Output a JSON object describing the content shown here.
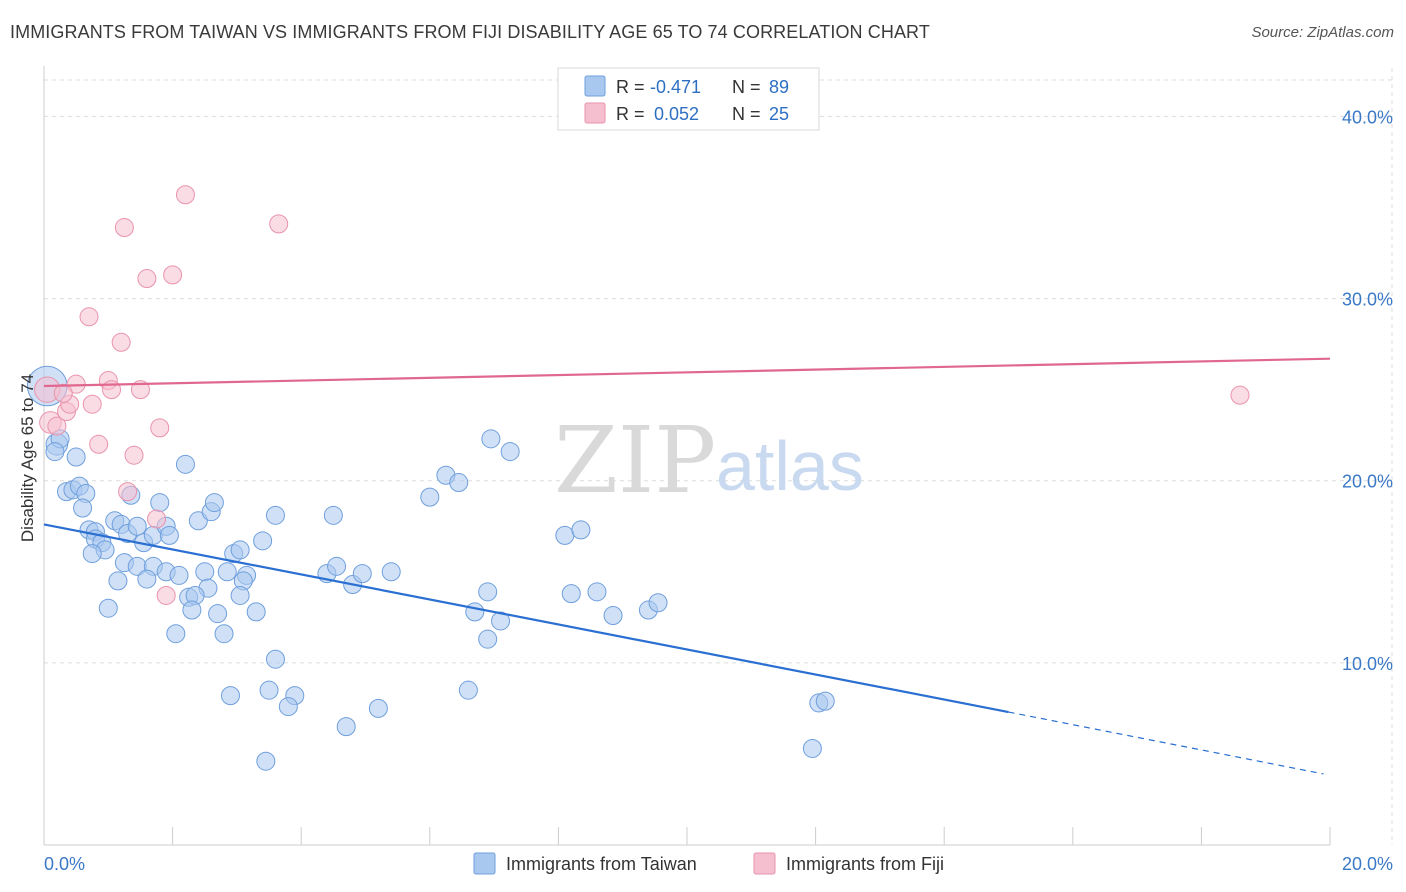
{
  "title": "IMMIGRANTS FROM TAIWAN VS IMMIGRANTS FROM FIJI DISABILITY AGE 65 TO 74 CORRELATION CHART",
  "source": "Source: ZipAtlas.com",
  "watermark": {
    "zip": "ZIP",
    "atlas": "atlas"
  },
  "colors": {
    "taiwan_fill": "#a9c8f0",
    "taiwan_stroke": "#6f9fdc",
    "taiwan_line": "#2a6fd1",
    "fiji_fill": "#f6bfd0",
    "fiji_stroke": "#e993ad",
    "fiji_line": "#e0688f",
    "grid": "#dcdcdc",
    "tick_label": "#3b78c6"
  },
  "legend_top": {
    "rows": [
      {
        "r_label": "R =",
        "r_value": "-0.471",
        "n_label": "N =",
        "n_value": "89",
        "color": "taiwan"
      },
      {
        "r_label": "R =",
        "r_value": "0.052",
        "n_label": "N =",
        "n_value": "25",
        "color": "fiji"
      }
    ]
  },
  "chart_data": {
    "type": "scatter",
    "title": "IMMIGRANTS FROM TAIWAN VS IMMIGRANTS FROM FIJI DISABILITY AGE 65 TO 74 CORRELATION CHART",
    "xlabel": "",
    "ylabel": "Disability Age 65 to 74",
    "xlim": [
      0,
      20
    ],
    "ylim": [
      0,
      42
    ],
    "x_tick_labels": [
      "0.0%",
      "20.0%"
    ],
    "y_ticks": [
      10,
      20,
      30,
      40
    ],
    "y_tick_labels": [
      "10.0%",
      "20.0%",
      "30.0%",
      "40.0%"
    ],
    "grid": true,
    "legend": "bottom-center",
    "series": [
      {
        "name": "Immigrants from Taiwan",
        "color": "taiwan",
        "points": [
          [
            0.05,
            25.2,
            2.2
          ],
          [
            0.2,
            22.0,
            1.2
          ],
          [
            0.25,
            22.3,
            1.0
          ],
          [
            0.17,
            21.6,
            1.0
          ],
          [
            0.35,
            19.4,
            1.0
          ],
          [
            0.45,
            19.5,
            1.0
          ],
          [
            0.55,
            19.7,
            1.0
          ],
          [
            0.65,
            19.3,
            1.0
          ],
          [
            0.6,
            18.5,
            1.0
          ],
          [
            0.7,
            17.3,
            1.0
          ],
          [
            0.8,
            17.2,
            1.0
          ],
          [
            0.8,
            16.8,
            1.0
          ],
          [
            0.9,
            16.6,
            1.0
          ],
          [
            0.95,
            16.2,
            1.0
          ],
          [
            1.1,
            17.8,
            1.0
          ],
          [
            1.2,
            17.6,
            1.0
          ],
          [
            1.3,
            17.1,
            1.0
          ],
          [
            1.35,
            19.2,
            1.0
          ],
          [
            1.45,
            17.5,
            1.0
          ],
          [
            1.55,
            16.6,
            1.0
          ],
          [
            1.7,
            17.0,
            1.0
          ],
          [
            1.8,
            18.8,
            1.0
          ],
          [
            1.9,
            17.5,
            1.0
          ],
          [
            1.95,
            17.0,
            1.0
          ],
          [
            1.25,
            15.5,
            1.0
          ],
          [
            1.45,
            15.3,
            1.0
          ],
          [
            1.7,
            15.3,
            1.0
          ],
          [
            1.9,
            15.0,
            1.0
          ],
          [
            2.1,
            14.8,
            1.0
          ],
          [
            1.15,
            14.5,
            1.0
          ],
          [
            1.6,
            14.6,
            1.0
          ],
          [
            2.2,
            20.9,
            1.0
          ],
          [
            2.4,
            17.8,
            1.0
          ],
          [
            2.6,
            18.3,
            1.0
          ],
          [
            2.65,
            18.8,
            1.0
          ],
          [
            2.95,
            16.0,
            1.0
          ],
          [
            3.05,
            16.2,
            1.0
          ],
          [
            3.4,
            16.7,
            1.0
          ],
          [
            3.6,
            18.1,
            1.0
          ],
          [
            2.5,
            15.0,
            1.0
          ],
          [
            2.85,
            15.0,
            1.0
          ],
          [
            3.15,
            14.8,
            1.0
          ],
          [
            3.1,
            14.5,
            1.0
          ],
          [
            2.55,
            14.1,
            1.0
          ],
          [
            3.05,
            13.7,
            1.0
          ],
          [
            2.25,
            13.6,
            1.0
          ],
          [
            2.35,
            13.7,
            1.0
          ],
          [
            2.3,
            12.9,
            1.0
          ],
          [
            2.7,
            12.7,
            1.0
          ],
          [
            3.3,
            12.8,
            1.0
          ],
          [
            1.0,
            13.0,
            1.0
          ],
          [
            2.05,
            11.6,
            1.0
          ],
          [
            2.8,
            11.6,
            1.0
          ],
          [
            3.6,
            10.2,
            1.0
          ],
          [
            2.9,
            8.2,
            1.0
          ],
          [
            3.5,
            8.5,
            1.0
          ],
          [
            3.9,
            8.2,
            1.0
          ],
          [
            3.8,
            7.6,
            1.0
          ],
          [
            3.45,
            4.6,
            1.0
          ],
          [
            4.5,
            18.1,
            1.0
          ],
          [
            4.4,
            14.9,
            1.0
          ],
          [
            4.55,
            15.3,
            1.0
          ],
          [
            4.8,
            14.3,
            1.0
          ],
          [
            4.95,
            14.9,
            1.0
          ],
          [
            5.4,
            15.0,
            1.0
          ],
          [
            4.7,
            6.5,
            1.0
          ],
          [
            5.2,
            7.5,
            1.0
          ],
          [
            6.0,
            19.1,
            1.0
          ],
          [
            6.25,
            20.3,
            1.0
          ],
          [
            6.45,
            19.9,
            1.0
          ],
          [
            6.6,
            8.5,
            1.0
          ],
          [
            6.7,
            12.8,
            1.0
          ],
          [
            6.9,
            13.9,
            1.0
          ],
          [
            6.9,
            11.3,
            1.0
          ],
          [
            7.1,
            12.3,
            1.0
          ],
          [
            6.95,
            22.3,
            1.0
          ],
          [
            7.25,
            21.6,
            1.0
          ],
          [
            8.1,
            17.0,
            1.0
          ],
          [
            8.35,
            17.3,
            1.0
          ],
          [
            8.2,
            13.8,
            1.0
          ],
          [
            8.6,
            13.9,
            1.0
          ],
          [
            8.85,
            12.6,
            1.0
          ],
          [
            9.4,
            12.9,
            1.0
          ],
          [
            9.55,
            13.3,
            1.0
          ],
          [
            12.05,
            7.8,
            1.0
          ],
          [
            12.15,
            7.9,
            1.0
          ],
          [
            11.95,
            5.3,
            1.0
          ],
          [
            0.5,
            21.3,
            1.0
          ],
          [
            0.75,
            16.0,
            1.0
          ]
        ]
      },
      {
        "name": "Immigrants from Fiji",
        "color": "fiji",
        "points": [
          [
            0.05,
            25.0,
            1.4
          ],
          [
            0.1,
            23.2,
            1.2
          ],
          [
            0.2,
            23.0,
            1.0
          ],
          [
            0.35,
            23.8,
            1.0
          ],
          [
            0.4,
            24.2,
            1.0
          ],
          [
            0.5,
            25.3,
            1.0
          ],
          [
            0.75,
            24.2,
            1.0
          ],
          [
            0.85,
            22.0,
            1.0
          ],
          [
            0.7,
            29.0,
            1.0
          ],
          [
            1.2,
            27.6,
            1.0
          ],
          [
            1.0,
            25.5,
            1.0
          ],
          [
            1.05,
            25.0,
            1.0
          ],
          [
            1.5,
            25.0,
            1.0
          ],
          [
            1.4,
            21.4,
            1.0
          ],
          [
            1.3,
            19.4,
            1.0
          ],
          [
            1.75,
            17.9,
            1.0
          ],
          [
            1.8,
            22.9,
            1.0
          ],
          [
            1.9,
            13.7,
            1.0
          ],
          [
            1.25,
            33.9,
            1.0
          ],
          [
            1.6,
            31.1,
            1.0
          ],
          [
            2.0,
            31.3,
            1.0
          ],
          [
            2.2,
            35.7,
            1.0
          ],
          [
            3.65,
            34.1,
            1.0
          ],
          [
            18.6,
            24.7,
            1.0
          ],
          [
            0.3,
            24.8,
            1.0
          ]
        ]
      }
    ],
    "trendlines": [
      {
        "series": "Immigrants from Taiwan",
        "x_start": 0,
        "y_start": 17.6,
        "x_solid_end": 15.0,
        "y_solid_end": 7.3,
        "x_end": 19.9,
        "y_end": 3.9
      },
      {
        "series": "Immigrants from Fiji",
        "x_start": 0,
        "y_start": 25.2,
        "x_end": 20.0,
        "y_end": 26.7
      }
    ]
  },
  "bottom_legend": [
    {
      "label": "Immigrants from Taiwan",
      "color": "taiwan"
    },
    {
      "label": "Immigrants from Fiji",
      "color": "fiji"
    }
  ]
}
